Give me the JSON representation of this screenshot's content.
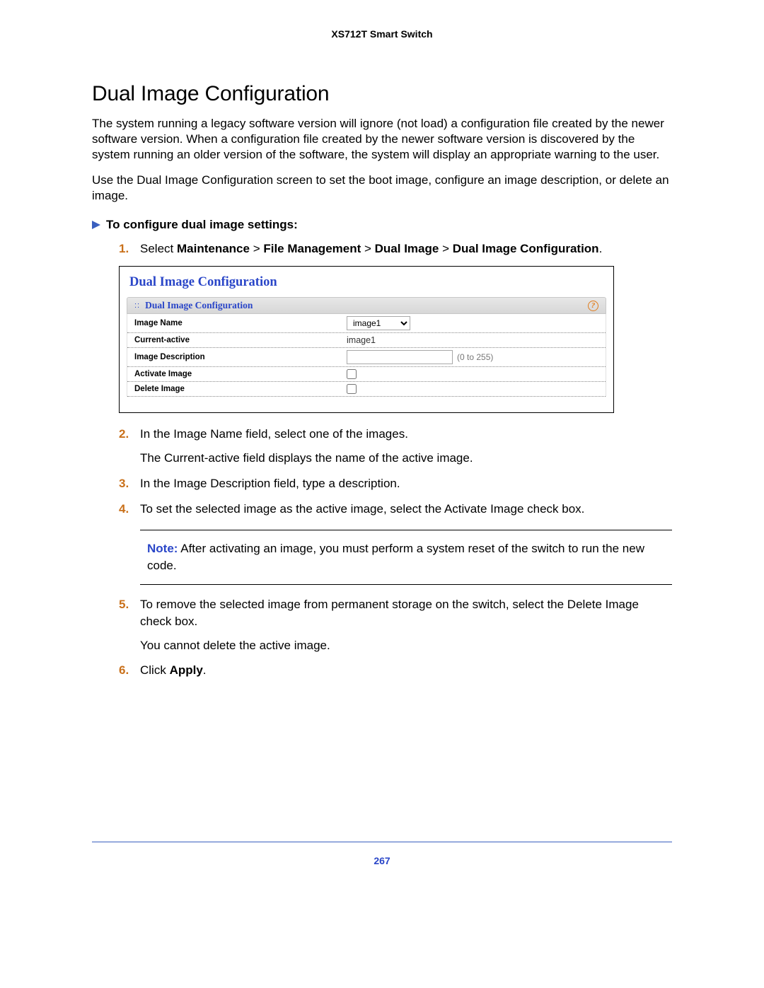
{
  "header": {
    "product": "XS712T Smart Switch"
  },
  "title": "Dual Image Configuration",
  "intro": {
    "p1": "The system running a legacy software version will ignore (not load) a configuration file created by the newer software version. When a configuration file created by the newer software version is discovered by the system running an older version of the software, the system will display an appropriate warning to the user.",
    "p2": "Use the Dual Image Configuration screen to set the boot image, configure an image description, or delete an image."
  },
  "task": {
    "heading": "To configure dual image settings:"
  },
  "steps": {
    "s1": {
      "prefix": "Select ",
      "p1": "Maintenance",
      "sep": " > ",
      "p2": "File Management",
      "p3": "Dual Image",
      "p4": "Dual Image Configuration",
      "suffix": "."
    },
    "s2": {
      "text": "In the Image Name field, select one of the images.",
      "sub": "The Current-active field displays the name of the active image."
    },
    "s3": {
      "text": "In the Image Description field, type a description."
    },
    "s4": {
      "text": "To set the selected image as the active image, select the Activate Image check box."
    },
    "s5": {
      "text": "To remove the selected image from permanent storage on the switch, select the Delete Image check box.",
      "sub": "You cannot delete the active image."
    },
    "s6": {
      "prefix": "Click ",
      "bold": "Apply",
      "suffix": "."
    }
  },
  "screenshot": {
    "title": "Dual Image Configuration",
    "panel_title": "Dual Image Configuration",
    "help_glyph": "?",
    "rows": {
      "image_name": {
        "label": "Image Name",
        "value": "image1"
      },
      "current_active": {
        "label": "Current-active",
        "value": "image1"
      },
      "image_desc": {
        "label": "Image Description",
        "value": "",
        "hint": "(0 to 255)"
      },
      "activate": {
        "label": "Activate Image"
      },
      "delete": {
        "label": "Delete Image"
      }
    }
  },
  "note": {
    "label": "Note:",
    "text": " After activating an image, you must perform a system reset of the switch to run the new code."
  },
  "page_number": "267",
  "colors": {
    "accent_blue": "#2a46c8",
    "arrow_blue": "#3a5fbf",
    "step_orange": "#c9701a",
    "help_orange": "#e07b1a"
  }
}
